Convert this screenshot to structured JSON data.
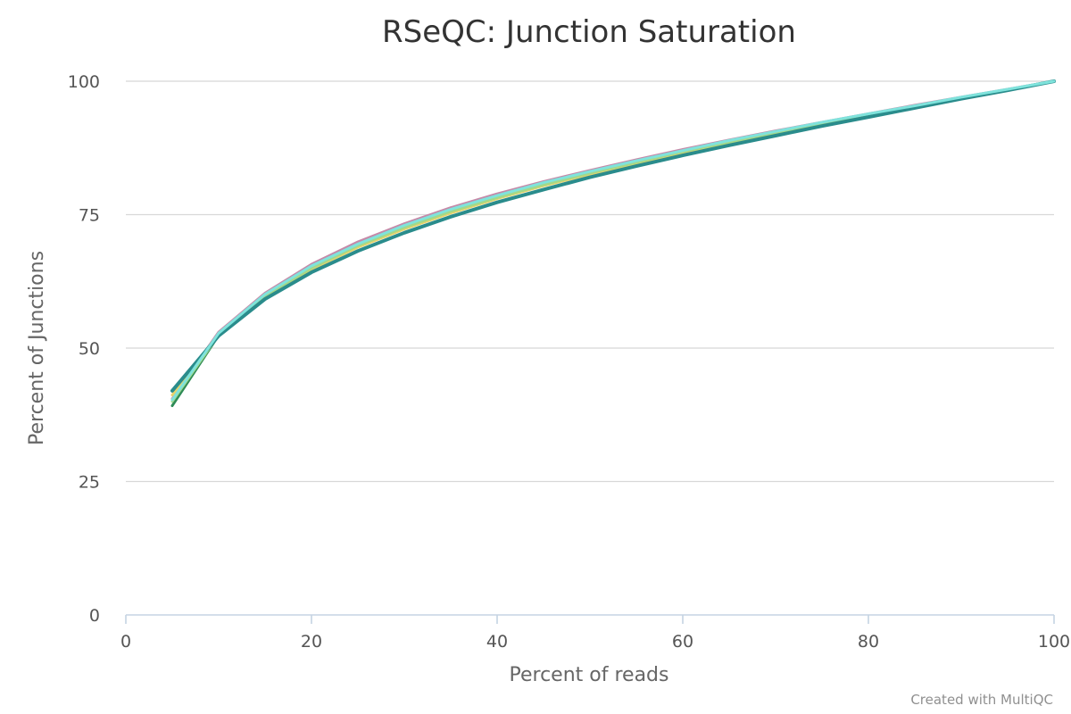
{
  "chart_data": {
    "type": "line",
    "title": "RSeQC: Junction Saturation",
    "xlabel": "Percent of reads",
    "ylabel": "Percent of Junctions",
    "xlim": [
      0,
      100
    ],
    "ylim": [
      0,
      100
    ],
    "x_ticks": [
      "0",
      "20",
      "40",
      "60",
      "80",
      "100"
    ],
    "y_ticks": [
      "0",
      "25",
      "50",
      "75",
      "100"
    ],
    "grid": true,
    "x": [
      5,
      10,
      15,
      20,
      25,
      30,
      35,
      40,
      45,
      50,
      55,
      60,
      65,
      70,
      75,
      80,
      85,
      90,
      95,
      100
    ],
    "series": [
      {
        "color": "#c589a8",
        "values": [
          40.5,
          53.0,
          60.3,
          65.7,
          69.9,
          73.3,
          76.3,
          78.9,
          81.2,
          83.3,
          85.3,
          87.2,
          89.0,
          90.7,
          92.3,
          93.9,
          95.5,
          97.0,
          98.5,
          100
        ]
      },
      {
        "color": "#2e8b57",
        "values": [
          39.2,
          52.4,
          59.7,
          64.9,
          69.1,
          72.5,
          75.5,
          78.1,
          80.5,
          82.7,
          84.8,
          86.7,
          88.6,
          90.4,
          92.1,
          93.8,
          95.3,
          96.9,
          98.4,
          100
        ]
      },
      {
        "color": "#e8d36a",
        "values": [
          41.2,
          52.6,
          59.7,
          64.8,
          68.9,
          72.3,
          75.3,
          78.0,
          80.4,
          82.6,
          84.6,
          86.6,
          88.5,
          90.3,
          92.0,
          93.7,
          95.3,
          96.9,
          98.4,
          100
        ]
      },
      {
        "color": "#a3d98a",
        "values": [
          40.0,
          52.5,
          59.8,
          65.0,
          69.2,
          72.6,
          75.6,
          78.2,
          80.6,
          82.8,
          84.8,
          86.8,
          88.6,
          90.4,
          92.1,
          93.7,
          95.3,
          96.9,
          98.4,
          100
        ]
      },
      {
        "color": "#2a8c8c",
        "values": [
          42.0,
          52.3,
          59.2,
          64.2,
          68.2,
          71.6,
          74.6,
          77.3,
          79.7,
          82.0,
          84.1,
          86.1,
          88.0,
          89.8,
          91.6,
          93.3,
          95.0,
          96.7,
          98.3,
          100
        ]
      },
      {
        "color": "#7fe3dc",
        "values": [
          40.3,
          52.8,
          60.1,
          65.4,
          69.5,
          73.0,
          76.0,
          78.6,
          81.0,
          83.1,
          85.1,
          87.0,
          88.9,
          90.6,
          92.3,
          93.9,
          95.4,
          97.0,
          98.5,
          100
        ]
      }
    ]
  },
  "credit": "Created with MultiQC"
}
